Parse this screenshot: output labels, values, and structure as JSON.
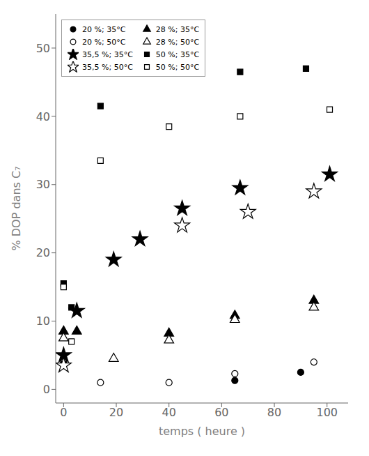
{
  "chart_data": {
    "type": "scatter",
    "xlabel": "temps ( heure )",
    "ylabel": "% DOP dans C₇",
    "xlim": [
      -3,
      108
    ],
    "ylim": [
      -2,
      55
    ],
    "xticks": [
      0,
      20,
      40,
      60,
      80,
      100
    ],
    "yticks": [
      0,
      10,
      20,
      30,
      40,
      50
    ],
    "grid": false,
    "legend": "upper left",
    "series": [
      {
        "name": "20 %; 35°C",
        "color": "black",
        "marker": "circle",
        "x": [
          0,
          65,
          90
        ],
        "y": [
          4.0,
          1.3,
          2.5
        ]
      },
      {
        "name": "20 %; 50°C",
        "color": "black",
        "marker": "circle_open",
        "x": [
          0,
          14,
          40,
          65,
          95
        ],
        "y": [
          4.5,
          1.0,
          1.0,
          2.3,
          4.0
        ]
      },
      {
        "name": "35,5 %; 35°C",
        "color": "black",
        "marker": "star",
        "x": [
          0,
          5,
          19,
          29,
          45,
          67,
          101
        ],
        "y": [
          5.0,
          11.5,
          19.0,
          22.0,
          26.5,
          29.5,
          31.5
        ]
      },
      {
        "name": "35,5 %; 50°C",
        "color": "black",
        "marker": "star_open",
        "x": [
          0,
          45,
          70,
          95
        ],
        "y": [
          3.5,
          24.0,
          26.0,
          29.0
        ]
      },
      {
        "name": "28 %; 35°C",
        "color": "black",
        "marker": "triangle",
        "x": [
          0,
          5,
          40,
          65,
          95
        ],
        "y": [
          8.5,
          8.5,
          8.2,
          10.8,
          13.0
        ]
      },
      {
        "name": "28 %; 50°C",
        "color": "black",
        "marker": "triangle_open",
        "x": [
          0,
          19,
          40,
          65,
          95
        ],
        "y": [
          7.5,
          4.5,
          7.2,
          10.2,
          12.0
        ]
      },
      {
        "name": "50 %; 35°C",
        "color": "black",
        "marker": "square",
        "x": [
          0,
          3,
          14,
          67,
          92
        ],
        "y": [
          15.5,
          12.0,
          41.5,
          46.5,
          47.0
        ]
      },
      {
        "name": "50 %; 50°C",
        "color": "black",
        "marker": "square_open",
        "x": [
          0,
          3,
          14,
          40,
          67,
          101
        ],
        "y": [
          15.0,
          7.0,
          33.5,
          38.5,
          40.0,
          41.0
        ]
      }
    ]
  }
}
